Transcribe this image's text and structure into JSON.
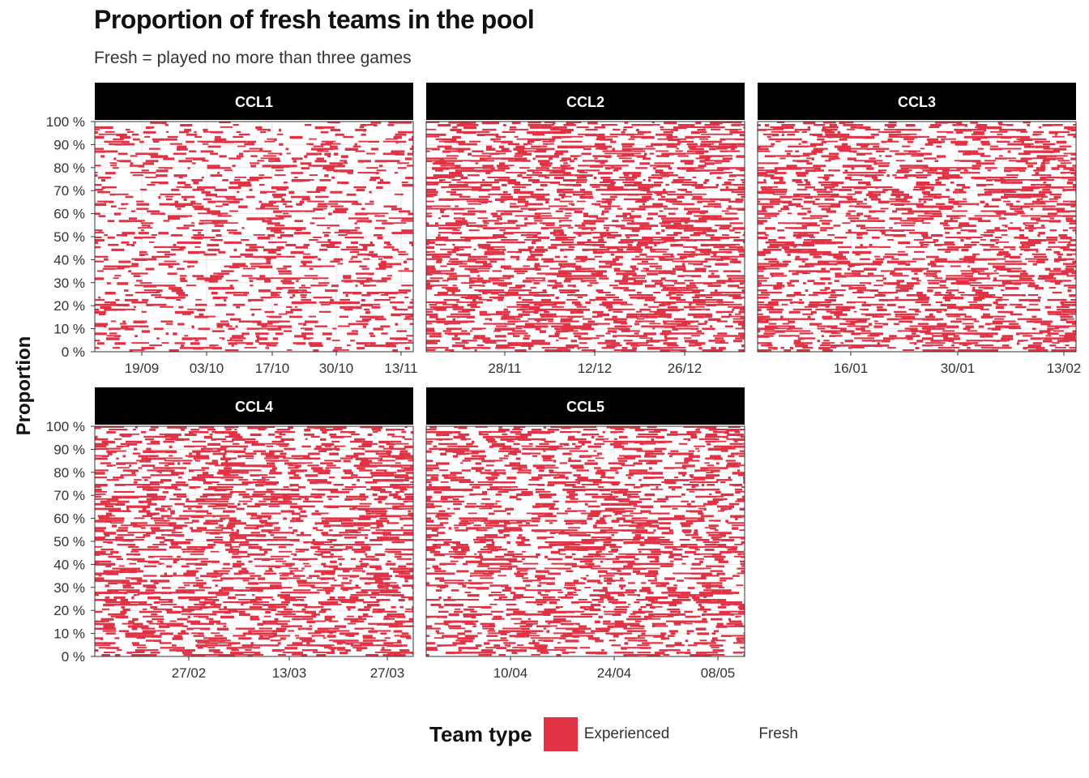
{
  "title": "Proportion of fresh teams in the pool",
  "subtitle": "Fresh = played no more than three games",
  "chart_data": {
    "type": "area",
    "ylabel": "Proportion",
    "ylim": [
      0,
      1
    ],
    "y_ticks": [
      "0 %",
      "10 %",
      "20 %",
      "30 %",
      "40 %",
      "50 %",
      "60 %",
      "70 %",
      "80 %",
      "90 %",
      "100 %"
    ],
    "legend": {
      "title": "Team type",
      "position": "bottom",
      "entries": [
        {
          "name": "Experienced",
          "color": "#e03245"
        },
        {
          "name": "Fresh",
          "color": "#ffffff"
        }
      ]
    },
    "facets": [
      {
        "name": "CCL1",
        "x_ticks": [
          "19/09",
          "03/10",
          "17/10",
          "30/10",
          "13/11"
        ],
        "experienced_density": 0.3
      },
      {
        "name": "CCL2",
        "x_ticks": [
          "28/11",
          "12/12",
          "26/12"
        ],
        "experienced_density": 0.5
      },
      {
        "name": "CCL3",
        "x_ticks": [
          "16/01",
          "30/01",
          "13/02"
        ],
        "experienced_density": 0.45
      },
      {
        "name": "CCL4",
        "x_ticks": [
          "27/02",
          "13/03",
          "27/03"
        ],
        "experienced_density": 0.48
      },
      {
        "name": "CCL5",
        "x_ticks": [
          "10/04",
          "24/04",
          "08/05"
        ],
        "experienced_density": 0.45
      }
    ]
  }
}
